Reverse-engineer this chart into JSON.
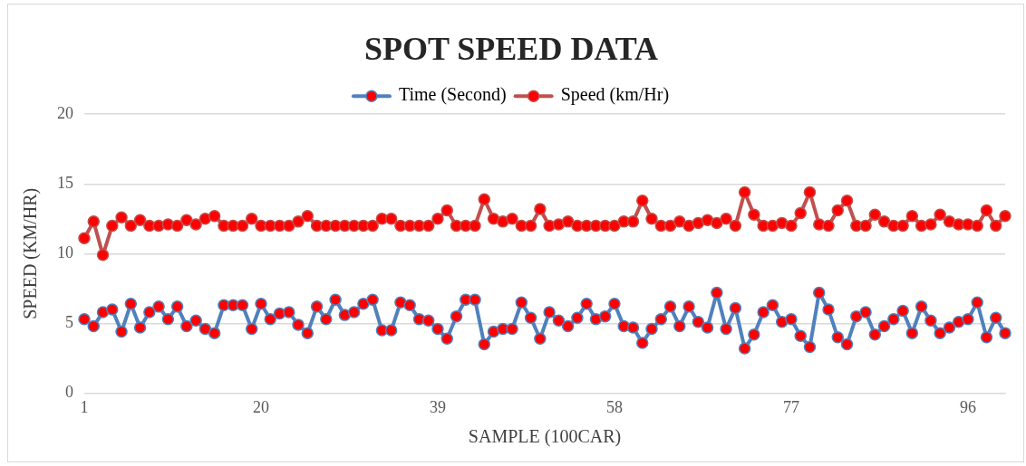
{
  "chart_data": {
    "type": "line",
    "title": "SPOT SPEED DATA",
    "xlabel": "SAMPLE (100CAR)",
    "ylabel": "SPEED (KM/HR)",
    "categories": [
      "1",
      null,
      null,
      null,
      null,
      null,
      null,
      null,
      null,
      null,
      null,
      null,
      null,
      null,
      null,
      null,
      null,
      null,
      null,
      "20",
      null,
      null,
      null,
      null,
      null,
      null,
      null,
      null,
      null,
      null,
      null,
      null,
      null,
      null,
      null,
      null,
      null,
      null,
      "39",
      null,
      null,
      null,
      null,
      null,
      null,
      null,
      null,
      null,
      null,
      null,
      null,
      null,
      null,
      null,
      null,
      null,
      null,
      "58",
      null,
      null,
      null,
      null,
      null,
      null,
      null,
      null,
      null,
      null,
      null,
      null,
      null,
      null,
      null,
      null,
      null,
      null,
      "77",
      null,
      null,
      null,
      null,
      null,
      null,
      null,
      null,
      null,
      null,
      null,
      null,
      null,
      null,
      null,
      null,
      null,
      null,
      "96",
      null,
      null,
      null,
      null
    ],
    "series": [
      {
        "name": "Time (Second)",
        "color": "#4f81bd",
        "values": [
          5.3,
          4.8,
          5.8,
          6.0,
          4.4,
          6.4,
          4.7,
          5.8,
          6.2,
          5.3,
          6.2,
          4.8,
          5.2,
          4.6,
          4.3,
          6.3,
          6.3,
          6.3,
          4.6,
          6.4,
          5.3,
          5.7,
          5.8,
          4.9,
          4.3,
          6.2,
          5.3,
          6.7,
          5.6,
          5.8,
          6.4,
          6.7,
          4.5,
          4.5,
          6.5,
          6.3,
          5.3,
          5.2,
          4.6,
          3.9,
          5.5,
          6.7,
          6.7,
          3.5,
          4.4,
          4.6,
          4.6,
          6.5,
          5.4,
          3.9,
          5.8,
          5.2,
          4.8,
          5.4,
          6.4,
          5.3,
          5.5,
          6.4,
          4.8,
          4.7,
          3.6,
          4.6,
          5.3,
          6.2,
          4.8,
          6.2,
          5.1,
          4.7,
          7.2,
          4.6,
          6.1,
          3.2,
          4.2,
          5.8,
          6.3,
          5.1,
          5.3,
          4.1,
          3.3,
          7.2,
          6.0,
          4.0,
          3.5,
          5.5,
          5.8,
          4.2,
          4.8,
          5.3,
          5.9,
          4.3,
          6.2,
          5.2,
          4.3,
          4.7,
          5.1,
          5.3,
          6.5,
          4.0,
          5.4,
          4.3
        ]
      },
      {
        "name": "Speed (km/Hr)",
        "color": "#c0504d",
        "values": [
          11.1,
          12.3,
          9.9,
          12.0,
          12.6,
          12.0,
          12.4,
          12.0,
          12.0,
          12.1,
          12.0,
          12.4,
          12.1,
          12.5,
          12.7,
          12.0,
          12.0,
          12.0,
          12.5,
          12.0,
          12.0,
          12.0,
          12.0,
          12.3,
          12.7,
          12.0,
          12.0,
          12.0,
          12.0,
          12.0,
          12.0,
          12.0,
          12.5,
          12.5,
          12.0,
          12.0,
          12.0,
          12.0,
          12.5,
          13.1,
          12.0,
          12.0,
          12.0,
          13.9,
          12.5,
          12.3,
          12.5,
          12.0,
          12.0,
          13.2,
          12.0,
          12.1,
          12.3,
          12.0,
          12.0,
          12.0,
          12.0,
          12.0,
          12.3,
          12.3,
          13.8,
          12.5,
          12.0,
          12.0,
          12.3,
          12.0,
          12.2,
          12.4,
          12.2,
          12.5,
          12.0,
          14.4,
          12.8,
          12.0,
          12.0,
          12.2,
          12.0,
          12.9,
          14.4,
          12.1,
          12.0,
          13.1,
          13.8,
          12.0,
          12.0,
          12.8,
          12.3,
          12.0,
          12.0,
          12.7,
          12.0,
          12.1,
          12.8,
          12.3,
          12.1,
          12.1,
          12.0,
          13.1,
          12.0,
          12.7
        ]
      }
    ],
    "ylim": [
      0,
      20
    ],
    "yticks": [
      0,
      5,
      10,
      15,
      20
    ],
    "grid": "y",
    "legend": "top",
    "marker": "circle",
    "line_style": "solid"
  }
}
